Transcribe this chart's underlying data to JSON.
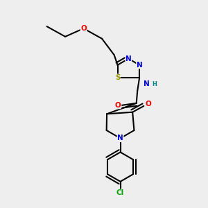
{
  "background_color": "#eeeeee",
  "atom_colors": {
    "C": "#000000",
    "N": "#0000ff",
    "O": "#ff0000",
    "S": "#999900",
    "Cl": "#00aa00",
    "H": "#008888"
  },
  "bond_color": "#000000",
  "bond_width": 1.5,
  "font_size": 7.5
}
